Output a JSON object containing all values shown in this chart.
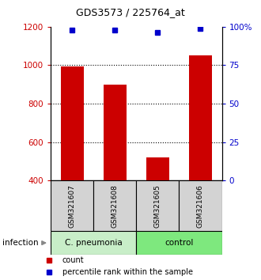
{
  "title": "GDS3573 / 225764_at",
  "samples": [
    "GSM321607",
    "GSM321608",
    "GSM321605",
    "GSM321606"
  ],
  "counts": [
    995,
    900,
    520,
    1050
  ],
  "percentiles": [
    98,
    98,
    96,
    99
  ],
  "ylim_left": [
    400,
    1200
  ],
  "ylim_right": [
    0,
    100
  ],
  "yticks_left": [
    400,
    600,
    800,
    1000,
    1200
  ],
  "yticks_right": [
    0,
    25,
    50,
    75,
    100
  ],
  "bar_color": "#cc0000",
  "dot_color": "#0000cc",
  "bar_bottom": 400,
  "groups": [
    {
      "label": "C. pneumonia",
      "indices": [
        0,
        1
      ],
      "color": "#c8eec8"
    },
    {
      "label": "control",
      "indices": [
        2,
        3
      ],
      "color": "#7ee87e"
    }
  ],
  "group_row_label": "infection",
  "sample_bg_color": "#d3d3d3",
  "sample_border_color": "#000000",
  "background_color": "#ffffff",
  "legend_count_label": "count",
  "legend_pct_label": "percentile rank within the sample",
  "left_axis_color": "#cc0000",
  "right_axis_color": "#0000cc",
  "bar_width": 0.55,
  "grid_dotted_vals": [
    600,
    800,
    1000
  ]
}
